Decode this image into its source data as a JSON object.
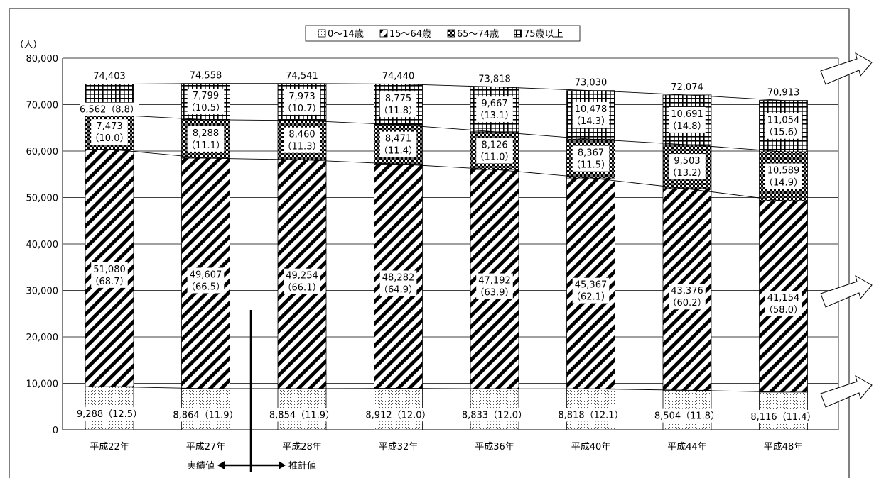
{
  "chart_data": {
    "type": "bar",
    "stacked": true,
    "y_unit_label": "（人）",
    "ylim": [
      0,
      80000
    ],
    "y_ticks": [
      "0",
      "10,000",
      "20,000",
      "30,000",
      "40,000",
      "50,000",
      "60,000",
      "70,000",
      "80,000"
    ],
    "grid": true,
    "legend_position": "top-center",
    "categories": [
      "平成22年",
      "平成27年",
      "平成28年",
      "平成32年",
      "平成36年",
      "平成40年",
      "平成44年",
      "平成48年"
    ],
    "totals": [
      74403,
      74558,
      74541,
      74440,
      73818,
      73030,
      72074,
      70913
    ],
    "total_labels": [
      "74,403",
      "74,558",
      "74,541",
      "74,440",
      "73,818",
      "73,030",
      "72,074",
      "70,913"
    ],
    "series": [
      {
        "name": "0～14歳",
        "values": [
          9288,
          8864,
          8854,
          8912,
          8833,
          8818,
          8504,
          8116
        ],
        "value_labels": [
          "9,288",
          "8,864",
          "8,854",
          "8,912",
          "8,833",
          "8,818",
          "8,504",
          "8,116"
        ],
        "pct_labels": [
          "（12.5）",
          "（11.9）",
          "（11.9）",
          "（12.0）",
          "（12.0）",
          "（12.1）",
          "（11.8）",
          "（11.4）"
        ]
      },
      {
        "name": "15～64歳",
        "values": [
          51080,
          49607,
          49254,
          48282,
          47192,
          45367,
          43376,
          41154
        ],
        "value_labels": [
          "51,080",
          "49,607",
          "49,254",
          "48,282",
          "47,192",
          "45,367",
          "43,376",
          "41,154"
        ],
        "pct_labels": [
          "（68.7）",
          "（66.5）",
          "（66.1）",
          "（64.9）",
          "（63.9）",
          "（62.1）",
          "（60.2）",
          "（58.0）"
        ]
      },
      {
        "name": "65～74歳",
        "values": [
          7473,
          8288,
          8460,
          8471,
          8126,
          8367,
          9503,
          10589
        ],
        "value_labels": [
          "7,473",
          "8,288",
          "8,460",
          "8,471",
          "8,126",
          "8,367",
          "9,503",
          "10,589"
        ],
        "pct_labels": [
          "（10.0）",
          "（11.1）",
          "（11.3）",
          "（11.4）",
          "（11.0）",
          "（11.5）",
          "（13.2）",
          "（14.9）"
        ]
      },
      {
        "name": "75歳以上",
        "values": [
          6562,
          7799,
          7973,
          8775,
          9667,
          10478,
          10691,
          11054
        ],
        "value_labels": [
          "6,562",
          "7,799",
          "7,973",
          "8,775",
          "9,667",
          "10,478",
          "10,691",
          "11,054"
        ],
        "pct_labels": [
          "（8.8）",
          "（10.5）",
          "（10.7）",
          "（11.8）",
          "（13.1）",
          "（14.3）",
          "（14.8）",
          "（15.6）"
        ]
      }
    ],
    "annotations": {
      "actual": "実績値",
      "estimate": "推計値"
    },
    "colors": {
      "ink": "#000000",
      "grid": "#000000",
      "background": "#ffffff"
    }
  }
}
